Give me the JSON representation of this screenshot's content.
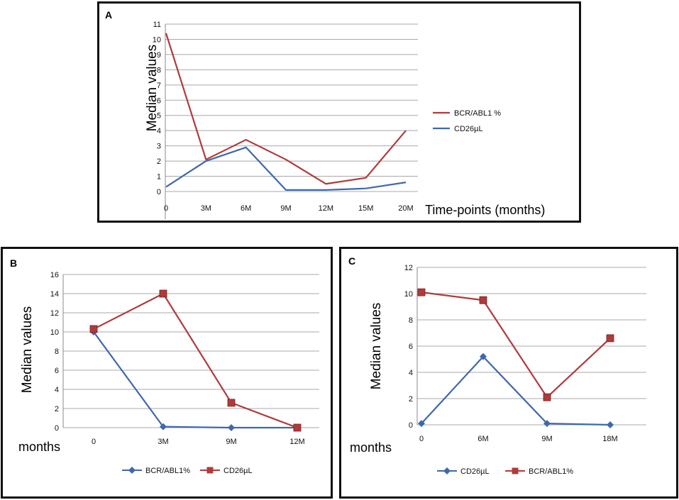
{
  "colors": {
    "red": "#b03a3a",
    "blue": "#3e68ad"
  },
  "chart_data": [
    {
      "panel": "A",
      "type": "line",
      "title": "",
      "ylabel": "Median values",
      "xlabel": "Time-points (months)",
      "categories": [
        "0",
        "3M",
        "6M",
        "9M",
        "12M",
        "15M",
        "20M"
      ],
      "ylim": [
        0,
        11
      ],
      "yticks": [
        0,
        1,
        2,
        3,
        4,
        5,
        6,
        7,
        8,
        9,
        10,
        11
      ],
      "series": [
        {
          "name": "BCR/ABL1 %",
          "color": "#b03a3a",
          "marker": "none",
          "values": [
            10.4,
            2.1,
            3.4,
            2.1,
            0.5,
            0.9,
            4.0
          ]
        },
        {
          "name": "CD26µL",
          "color": "#3e68ad",
          "marker": "none",
          "values": [
            0.3,
            2.0,
            2.9,
            0.1,
            0.1,
            0.2,
            0.6
          ]
        }
      ],
      "legend": "right"
    },
    {
      "panel": "B",
      "type": "line",
      "title": "",
      "ylabel": "Median values",
      "xlabel": "months",
      "categories": [
        "0",
        "3M",
        "9M",
        "12M"
      ],
      "ylim": [
        0,
        16
      ],
      "yticks": [
        0,
        2,
        4,
        6,
        8,
        10,
        12,
        14,
        16
      ],
      "series": [
        {
          "name": "BCR/ABL1%",
          "color": "#3e68ad",
          "marker": "diamond",
          "values": [
            10.0,
            0.1,
            0.0,
            0.0
          ]
        },
        {
          "name": "CD26µL",
          "color": "#b03a3a",
          "marker": "square",
          "values": [
            10.3,
            14.0,
            2.6,
            0.0
          ]
        }
      ],
      "legend": "bottom"
    },
    {
      "panel": "C",
      "type": "line",
      "title": "",
      "ylabel": "Median values",
      "xlabel": "months",
      "categories": [
        "0",
        "6M",
        "9M",
        "18M"
      ],
      "ylim": [
        0,
        12
      ],
      "yticks": [
        0,
        2,
        4,
        6,
        8,
        10,
        12
      ],
      "series": [
        {
          "name": "CD26µL",
          "color": "#3e68ad",
          "marker": "diamond",
          "values": [
            0.1,
            5.2,
            0.1,
            0.0
          ]
        },
        {
          "name": "BCR/ABL1%",
          "color": "#b03a3a",
          "marker": "square",
          "values": [
            10.1,
            9.5,
            2.1,
            6.6
          ]
        }
      ],
      "legend": "bottom"
    }
  ]
}
